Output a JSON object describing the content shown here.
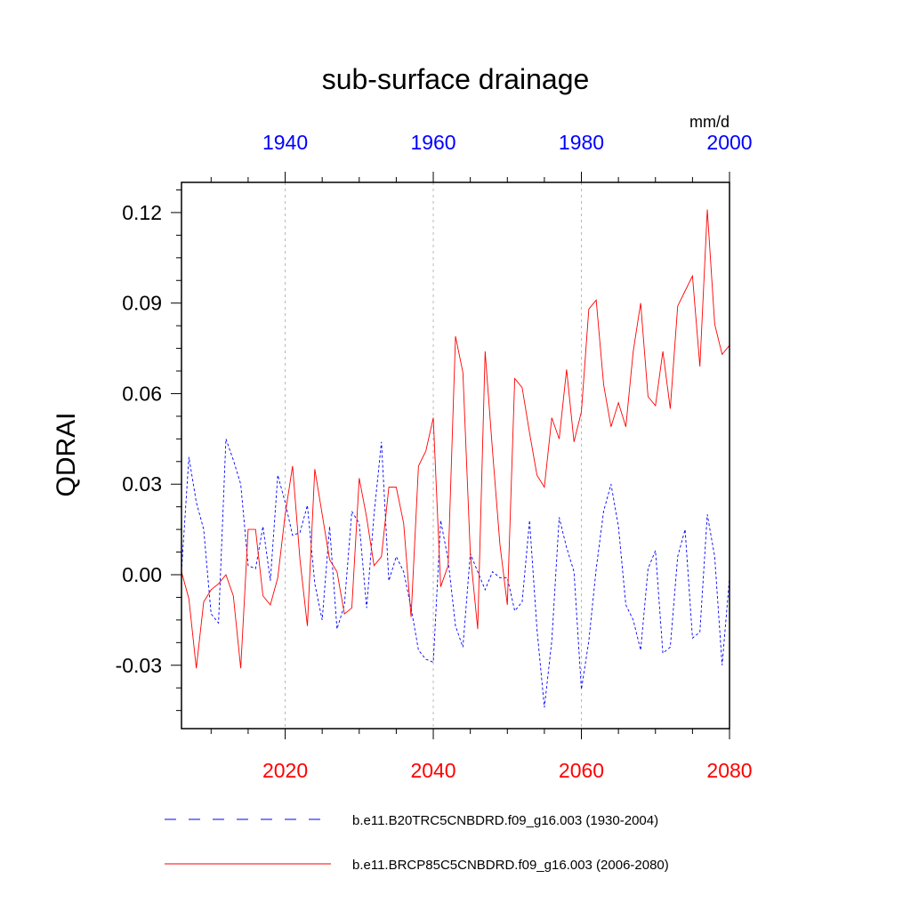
{
  "chart_data": {
    "type": "line",
    "title": "sub-surface drainage",
    "units": "mm/d",
    "ylabel": "QDRAI",
    "ylim": [
      -0.051,
      0.13
    ],
    "yticks": [
      -0.03,
      0.0,
      0.03,
      0.06,
      0.09,
      0.12
    ],
    "ytick_labels": [
      "-0.03",
      "0.00",
      "0.03",
      "0.06",
      "0.09",
      "0.12"
    ],
    "x_bottom": {
      "range": [
        2006,
        2080
      ],
      "ticks": [
        2020,
        2040,
        2060,
        2080
      ],
      "tick_labels": [
        "2020",
        "2040",
        "2060",
        "2080"
      ],
      "color": "#ff0000"
    },
    "x_top": {
      "range": [
        1926,
        2000
      ],
      "ticks": [
        1940,
        1960,
        1980,
        2000
      ],
      "tick_labels": [
        "1940",
        "1960",
        "1980",
        "2000"
      ],
      "color": "#0000ff"
    },
    "grid_x": [
      2020,
      2040,
      2060
    ],
    "series": [
      {
        "name": "b.e11.B20TRC5CNBDRD.f09_g16.003 (1930-2004)",
        "color": "#0000ff",
        "style": "dashed",
        "axis": "top",
        "x_start": 1926,
        "values": [
          0.001,
          0.039,
          0.024,
          0.015,
          -0.013,
          -0.016,
          0.045,
          0.038,
          0.03,
          0.003,
          0.002,
          0.016,
          -0.002,
          0.033,
          0.024,
          0.013,
          0.014,
          0.023,
          -0.003,
          -0.015,
          0.016,
          -0.018,
          -0.01,
          0.021,
          0.017,
          -0.011,
          0.02,
          0.044,
          -0.002,
          0.006,
          0.001,
          -0.011,
          -0.025,
          -0.028,
          -0.029,
          0.018,
          0.005,
          -0.017,
          -0.024,
          0.007,
          0.001,
          -0.005,
          0.001,
          -0.001,
          -0.001,
          -0.012,
          -0.009,
          0.018,
          -0.018,
          -0.044,
          -0.022,
          0.019,
          0.009,
          0.001,
          -0.038,
          -0.022,
          0.002,
          0.021,
          0.03,
          0.016,
          -0.01,
          -0.015,
          -0.025,
          0.002,
          0.008,
          -0.026,
          -0.024,
          0.006,
          0.015,
          -0.021,
          -0.019,
          0.02,
          0.006,
          -0.03,
          -0.001
        ]
      },
      {
        "name": "b.e11.BRCP85C5CNBDRD.f09_g16.003 (2006-2080)",
        "color": "#ff0000",
        "style": "solid",
        "axis": "bottom",
        "x_start": 2006,
        "values": [
          0.001,
          -0.008,
          -0.031,
          -0.009,
          -0.005,
          -0.003,
          0.0,
          -0.007,
          -0.031,
          0.015,
          0.015,
          -0.007,
          -0.01,
          -0.001,
          0.02,
          0.036,
          0.005,
          -0.017,
          0.035,
          0.02,
          0.005,
          0.001,
          -0.013,
          -0.011,
          0.032,
          0.019,
          0.003,
          0.006,
          0.029,
          0.029,
          0.017,
          -0.014,
          0.036,
          0.041,
          0.052,
          -0.004,
          0.003,
          0.079,
          0.067,
          0.007,
          -0.018,
          0.074,
          0.041,
          0.01,
          -0.01,
          0.065,
          0.062,
          0.047,
          0.033,
          0.029,
          0.052,
          0.045,
          0.068,
          0.044,
          0.054,
          0.088,
          0.091,
          0.063,
          0.049,
          0.057,
          0.049,
          0.074,
          0.09,
          0.059,
          0.056,
          0.074,
          0.055,
          0.089,
          0.094,
          0.099,
          0.069,
          0.121,
          0.083,
          0.073,
          0.076
        ]
      }
    ],
    "legend_position": "bottom"
  }
}
